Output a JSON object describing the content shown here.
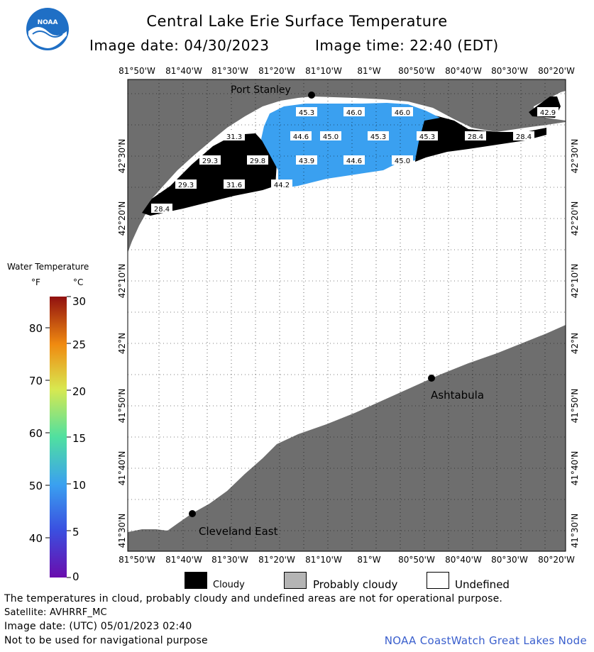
{
  "header": {
    "title": "Central Lake Erie Surface Temperature",
    "image_date": "Image date: 04/30/2023",
    "image_time": "Image time: 22:40 (EDT)",
    "logo_text": "NOAA"
  },
  "axes": {
    "lon_labels": [
      "81°50'W",
      "81°40'W",
      "81°30'W",
      "81°20'W",
      "81°10'W",
      "81°W",
      "80°50'W",
      "80°40'W",
      "80°30'W",
      "80°20'W"
    ],
    "lat_labels": [
      "42°30'N",
      "42°20'N",
      "42°10'N",
      "42°N",
      "41°50'N",
      "41°40'N",
      "41°30'N"
    ]
  },
  "places": [
    {
      "name": "Port Stanley"
    },
    {
      "name": "Ashtabula"
    },
    {
      "name": "Cleveland East"
    }
  ],
  "temperature_labels": [
    {
      "value": "45.3"
    },
    {
      "value": "46.0"
    },
    {
      "value": "46.0"
    },
    {
      "value": "31.3"
    },
    {
      "value": "44.6"
    },
    {
      "value": "45.0"
    },
    {
      "value": "45.3"
    },
    {
      "value": "45.3"
    },
    {
      "value": "28.4"
    },
    {
      "value": "28.4"
    },
    {
      "value": "29.3"
    },
    {
      "value": "29.8"
    },
    {
      "value": "43.9"
    },
    {
      "value": "44.6"
    },
    {
      "value": "45.0"
    },
    {
      "value": "29.3"
    },
    {
      "value": "31.6"
    },
    {
      "value": "44.2"
    },
    {
      "value": "28.4"
    },
    {
      "value": "42.9"
    }
  ],
  "colorbar": {
    "title": "Water Temperature",
    "unit_f": "°F",
    "unit_c": "°C",
    "f_ticks": [
      "80",
      "70",
      "60",
      "50",
      "40"
    ],
    "c_ticks": [
      "30",
      "25",
      "20",
      "15",
      "10",
      "5",
      "0"
    ]
  },
  "legend": {
    "cloudy": "Cloudy",
    "probably_cloudy": "Probably cloudy",
    "undefined": "Undefined"
  },
  "footer": {
    "disclaimer": "The temperatures in cloud, probably cloudy and undefined areas are not for operational purpose.",
    "satellite": "Satellite: AVHRRF_MC",
    "utc_date": "Image date: (UTC) 05/01/2023  02:40",
    "nav_warning": "Not to be used for navigational purpose",
    "node": "NOAA CoastWatch Great Lakes Node"
  },
  "colors": {
    "land": "#6e6e6e",
    "cloudy": "#000000",
    "water_temp_blue": "#3aa0f0",
    "undefined": "#ffffff",
    "probably_cloudy": "#b4b4b4"
  }
}
